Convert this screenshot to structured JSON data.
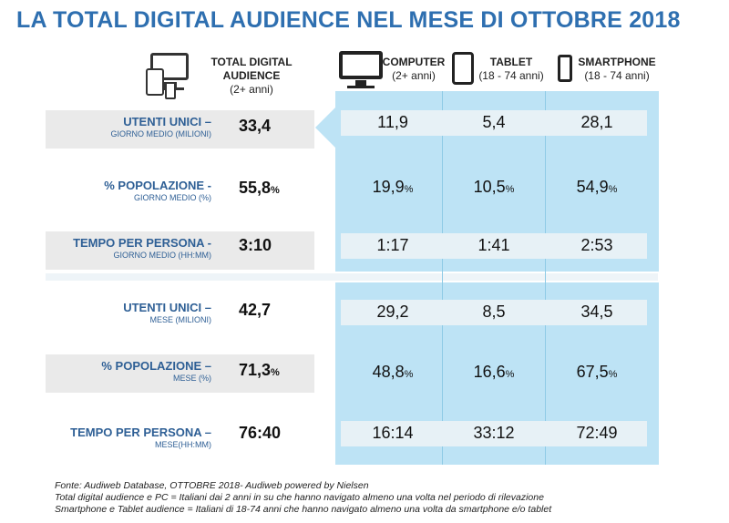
{
  "title": "LA TOTAL DIGITAL AUDIENCE NEL MESE DI OTTOBRE 2018",
  "columns": {
    "total": {
      "label": "TOTAL DIGITAL AUDIENCE",
      "label_line1": "TOTAL DIGITAL",
      "label_line2": "AUDIENCE",
      "sub": "(2+ anni)"
    },
    "computer": {
      "label": "COMPUTER",
      "sub": "(2+ anni)"
    },
    "tablet": {
      "label": "TABLET",
      "sub": "(18 - 74 anni)"
    },
    "smartphone": {
      "label": "SMARTPHONE",
      "sub": "(18 - 74 anni)"
    }
  },
  "rows": [
    {
      "label": "UTENTI UNICI –",
      "sub": "GIORNO MEDIO (MILIONI)",
      "total": "33,4",
      "total_unit": "",
      "computer": "11,9",
      "tablet": "5,4",
      "smartphone": "28,1",
      "unit": ""
    },
    {
      "label": "% POPOLAZIONE -",
      "sub": "GIORNO MEDIO (%)",
      "total": "55,8",
      "total_unit": "%",
      "computer": "19,9",
      "tablet": "10,5",
      "smartphone": "54,9",
      "unit": "%"
    },
    {
      "label": "TEMPO PER PERSONA -",
      "sub": "GIORNO MEDIO (HH:MM)",
      "total": "3:10",
      "total_unit": "",
      "computer": "1:17",
      "tablet": "1:41",
      "smartphone": "2:53",
      "unit": ""
    },
    {
      "label": "UTENTI UNICI –",
      "sub": "MESE (MILIONI)",
      "total": "42,7",
      "total_unit": "",
      "computer": "29,2",
      "tablet": "8,5",
      "smartphone": "34,5",
      "unit": ""
    },
    {
      "label": "% POPOLAZIONE –",
      "sub": "MESE (%)",
      "total": "71,3",
      "total_unit": "%",
      "computer": "48,8",
      "tablet": "16,6",
      "smartphone": "67,5",
      "unit": "%"
    },
    {
      "label": "TEMPO PER PERSONA –",
      "sub": "MESE(HH:MM)",
      "total": "76:40",
      "total_unit": "",
      "computer": "16:14",
      "tablet": "33:12",
      "smartphone": "72:49",
      "unit": ""
    }
  ],
  "footer": {
    "line1": "Fonte: Audiweb Database, OTTOBRE 2018- Audiweb powered by Nielsen",
    "line2": "Total digital audience e PC = Italiani dai 2 anni in su che hanno navigato almeno una volta nel periodo di rilevazione",
    "line3": "Smartphone e Tablet audience = Italiani di 18-74 anni che hanno navigato almeno una volta da smartphone e/o tablet"
  },
  "colors": {
    "title": "#2e6fb0",
    "panel": "#bde3f5",
    "label": "#2e5f95",
    "row_bg": "#eaeaea"
  },
  "icons": [
    "multi-device-icon",
    "monitor-icon",
    "tablet-icon",
    "smartphone-icon"
  ]
}
